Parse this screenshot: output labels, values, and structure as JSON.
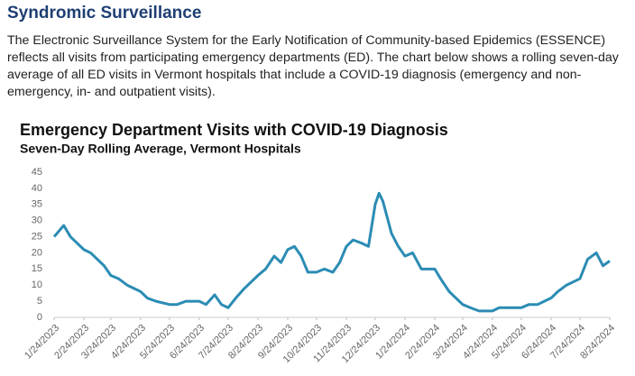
{
  "header": {
    "title": "Syndromic Surveillance",
    "text": "The Electronic Surveillance System for the Early Notification of Community-based Epidemics (ESSENCE) reflects all visits from participating emergency departments (ED). The chart below shows a rolling seven-day average of all ED visits in Vermont hospitals that include a COVID-19 diagnosis (emergency and non-emergency, in- and outpatient visits)."
  },
  "chart_data": {
    "type": "line",
    "title": "Emergency Department Visits with COVID-19 Diagnosis",
    "subtitle": "Seven-Day Rolling Average, Vermont Hospitals",
    "x": [
      "2023-01-24",
      "2023-02-03",
      "2023-02-10",
      "2023-02-24",
      "2023-03-03",
      "2023-03-10",
      "2023-03-17",
      "2023-03-24",
      "2023-04-01",
      "2023-04-10",
      "2023-04-24",
      "2023-05-01",
      "2023-05-10",
      "2023-05-24",
      "2023-06-01",
      "2023-06-10",
      "2023-06-24",
      "2023-07-01",
      "2023-07-10",
      "2023-07-17",
      "2023-07-24",
      "2023-08-01",
      "2023-08-10",
      "2023-08-24",
      "2023-09-01",
      "2023-09-10",
      "2023-09-17",
      "2023-09-24",
      "2023-10-01",
      "2023-10-08",
      "2023-10-15",
      "2023-10-24",
      "2023-11-01",
      "2023-11-10",
      "2023-11-17",
      "2023-11-24",
      "2023-12-01",
      "2023-12-10",
      "2023-12-17",
      "2023-12-24",
      "2023-12-28",
      "2024-01-01",
      "2024-01-10",
      "2024-01-17",
      "2024-01-24",
      "2024-02-01",
      "2024-02-10",
      "2024-02-24",
      "2024-03-01",
      "2024-03-10",
      "2024-03-17",
      "2024-03-24",
      "2024-04-01",
      "2024-04-10",
      "2024-04-24",
      "2024-05-01",
      "2024-05-10",
      "2024-05-24",
      "2024-06-01",
      "2024-06-10",
      "2024-06-24",
      "2024-07-01",
      "2024-07-10",
      "2024-07-24",
      "2024-08-01",
      "2024-08-10",
      "2024-08-17",
      "2024-08-24"
    ],
    "series": [
      {
        "name": "ED visits",
        "color": "#2b8cb4",
        "values": [
          25,
          28.5,
          25,
          21,
          20,
          18,
          16,
          13,
          12,
          10,
          8,
          6,
          5,
          4,
          4,
          5,
          5,
          4,
          7,
          4,
          3,
          6,
          9,
          13,
          15,
          19,
          17,
          21,
          22,
          19,
          14,
          14,
          15,
          14,
          17,
          22,
          24,
          23,
          22,
          35,
          38.5,
          36,
          26,
          22,
          19,
          20,
          15,
          15,
          12,
          8,
          6,
          4,
          3,
          2,
          2,
          3,
          3,
          3,
          4,
          4,
          6,
          8,
          10,
          12,
          18,
          20,
          16,
          17.5
        ]
      }
    ],
    "xlim": [
      "2023-01-24",
      "2024-08-24"
    ],
    "xticks": [
      {
        "value": "2023-01-24",
        "label": "1/24/2023"
      },
      {
        "value": "2023-02-24",
        "label": "2/24/2023"
      },
      {
        "value": "2023-03-24",
        "label": "3/24/2023"
      },
      {
        "value": "2023-04-24",
        "label": "4/24/2023"
      },
      {
        "value": "2023-05-24",
        "label": "5/24/2023"
      },
      {
        "value": "2023-06-24",
        "label": "6/24/2023"
      },
      {
        "value": "2023-07-24",
        "label": "7/24/2023"
      },
      {
        "value": "2023-08-24",
        "label": "8/24/2023"
      },
      {
        "value": "2023-09-24",
        "label": "9/24/2023"
      },
      {
        "value": "2023-10-24",
        "label": "10/24/2023"
      },
      {
        "value": "2023-11-24",
        "label": "11/24/2023"
      },
      {
        "value": "2023-12-24",
        "label": "12/24/2023"
      },
      {
        "value": "2024-01-24",
        "label": "1/24/2024"
      },
      {
        "value": "2024-02-24",
        "label": "2/24/2024"
      },
      {
        "value": "2024-03-24",
        "label": "3/24/2024"
      },
      {
        "value": "2024-04-24",
        "label": "4/24/2024"
      },
      {
        "value": "2024-05-24",
        "label": "5/24/2024"
      },
      {
        "value": "2024-06-24",
        "label": "6/24/2024"
      },
      {
        "value": "2024-07-24",
        "label": "7/24/2024"
      },
      {
        "value": "2024-08-24",
        "label": "8/24/2024"
      }
    ],
    "ylim": [
      0,
      45
    ],
    "yticks": [
      0,
      5,
      10,
      15,
      20,
      25,
      30,
      35,
      40,
      45
    ],
    "grid": false
  }
}
